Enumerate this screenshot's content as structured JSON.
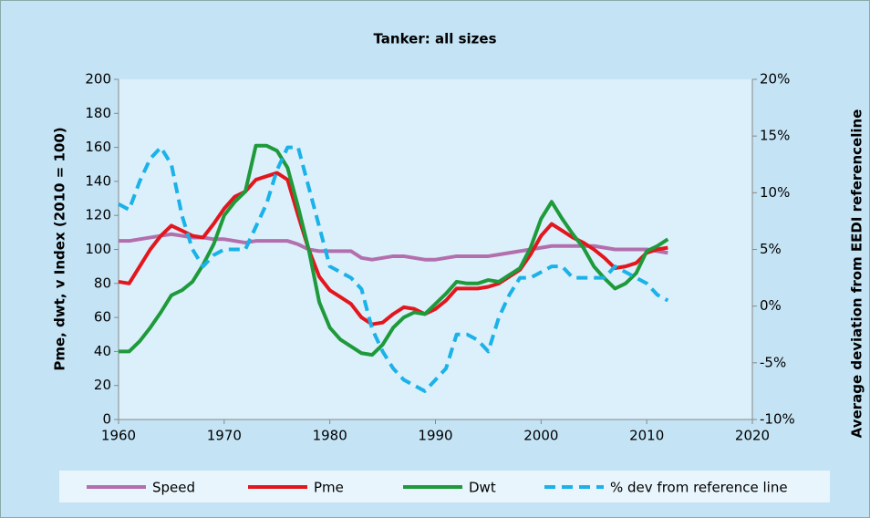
{
  "chart_data": {
    "type": "line",
    "title": "Tanker: all sizes",
    "y_label": "Pme, dwt, v Index (2010 = 100)",
    "y2_label": "Average deviation from EEDI referenceline",
    "x": [
      1960,
      1961,
      1962,
      1963,
      1964,
      1965,
      1966,
      1967,
      1968,
      1969,
      1970,
      1971,
      1972,
      1973,
      1974,
      1975,
      1976,
      1977,
      1978,
      1979,
      1980,
      1981,
      1982,
      1983,
      1984,
      1985,
      1986,
      1987,
      1988,
      1989,
      1990,
      1991,
      1992,
      1993,
      1994,
      1995,
      1996,
      1997,
      1998,
      1999,
      2000,
      2001,
      2002,
      2003,
      2004,
      2005,
      2006,
      2007,
      2008,
      2009,
      2010,
      2011,
      2012
    ],
    "xlim": [
      1960,
      2020
    ],
    "xticks": [
      1960,
      1970,
      1980,
      1990,
      2000,
      2010,
      2020
    ],
    "ylim": [
      0,
      200
    ],
    "yticks": [
      0,
      20,
      40,
      60,
      80,
      100,
      120,
      140,
      160,
      180,
      200
    ],
    "y2lim": [
      -10,
      20
    ],
    "y2ticks": [
      {
        "value": -10,
        "label": "-10%"
      },
      {
        "value": -5,
        "label": "-5%"
      },
      {
        "value": 0,
        "label": "0%"
      },
      {
        "value": 5,
        "label": "5%"
      },
      {
        "value": 10,
        "label": "10%"
      },
      {
        "value": 15,
        "label": "15%"
      },
      {
        "value": 20,
        "label": "20%"
      }
    ],
    "legend": "bottom",
    "series": [
      {
        "name": "Speed",
        "color": "#b36fad",
        "dash": false,
        "values": [
          105,
          105,
          106,
          107,
          108,
          109,
          108,
          107,
          107,
          106,
          106,
          105,
          104,
          105,
          105,
          105,
          105,
          103,
          100,
          99,
          99,
          99,
          99,
          95,
          94,
          95,
          96,
          96,
          95,
          94,
          94,
          95,
          96,
          96,
          96,
          96,
          97,
          98,
          99,
          100,
          101,
          102,
          102,
          102,
          102,
          102,
          101,
          100,
          100,
          100,
          100,
          99,
          98
        ]
      },
      {
        "name": "Pme",
        "color": "#e3161d",
        "dash": false,
        "values": [
          81,
          80,
          90,
          100,
          108,
          114,
          111,
          108,
          107,
          115,
          124,
          131,
          134,
          141,
          143,
          145,
          141,
          120,
          100,
          84,
          76,
          72,
          68,
          60,
          56,
          57,
          62,
          66,
          65,
          62,
          65,
          70,
          77,
          77,
          77,
          78,
          80,
          84,
          88,
          97,
          108,
          115,
          111,
          107,
          104,
          100,
          95,
          89,
          90,
          92,
          98,
          100,
          101
        ]
      },
      {
        "name": "Dwt",
        "color": "#1e9a3b",
        "dash": false,
        "values": [
          40,
          40,
          46,
          54,
          63,
          73,
          76,
          81,
          91,
          103,
          120,
          128,
          134,
          161,
          161,
          158,
          148,
          125,
          100,
          69,
          54,
          47,
          43,
          39,
          38,
          44,
          54,
          60,
          63,
          62,
          68,
          74,
          81,
          80,
          80,
          82,
          81,
          85,
          89,
          101,
          118,
          128,
          118,
          109,
          101,
          90,
          83,
          77,
          80,
          86,
          99,
          102,
          106
        ]
      },
      {
        "name": "% dev from reference line",
        "color": "#1ab2e8",
        "dash": true,
        "axis": "y2",
        "values": [
          9,
          8.5,
          11,
          13,
          14,
          12.5,
          8,
          5,
          3.5,
          4.5,
          5,
          5,
          5,
          7,
          9,
          12,
          14,
          14,
          10.5,
          7,
          3.5,
          3,
          2.5,
          1.5,
          -2,
          -4,
          -5.5,
          -6.5,
          -7,
          -7.5,
          -6.5,
          -5.5,
          -2.5,
          -2.5,
          -3,
          -4,
          -1,
          1,
          2.5,
          2.5,
          3,
          3.5,
          3.5,
          2.5,
          2.5,
          2.5,
          2.5,
          3.5,
          3,
          2.5,
          2,
          1,
          0.5
        ]
      }
    ]
  }
}
